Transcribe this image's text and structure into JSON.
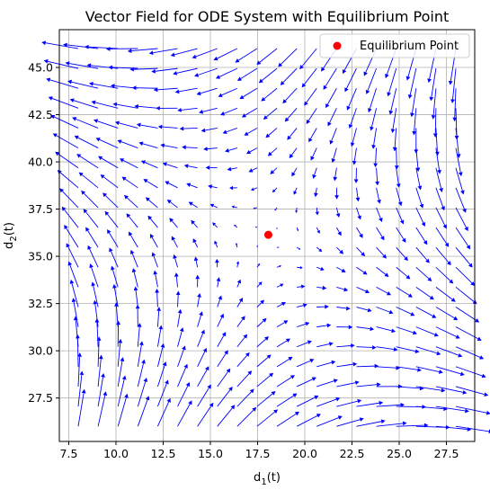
{
  "chart_data": {
    "type": "quiver",
    "title": "Vector Field for ODE System with Equilibrium Point",
    "xlabel": {
      "base": "d",
      "sub": "1",
      "suffix": "(t)"
    },
    "ylabel": {
      "base": "d",
      "sub": "2",
      "suffix": "(t)"
    },
    "xlim": [
      7.0,
      29.0
    ],
    "ylim": [
      25.2,
      47.0
    ],
    "xticks": [
      "7.5",
      "10.0",
      "12.5",
      "15.0",
      "17.5",
      "20.0",
      "22.5",
      "25.0",
      "27.5"
    ],
    "xtick_values": [
      7.5,
      10.0,
      12.5,
      15.0,
      17.5,
      20.0,
      22.5,
      25.0,
      27.5
    ],
    "yticks": [
      "27.5",
      "30.0",
      "32.5",
      "35.0",
      "37.5",
      "40.0",
      "42.5",
      "45.0"
    ],
    "ytick_values": [
      27.5,
      30.0,
      32.5,
      35.0,
      37.5,
      40.0,
      42.5,
      45.0
    ],
    "grid": true,
    "legend": {
      "placement": "top-right",
      "entries": [
        "Equilibrium Point"
      ]
    },
    "equilibrium": {
      "x": 18.07,
      "y": 36.14
    },
    "field": {
      "x_range": [
        8.0,
        28.0
      ],
      "y_range": [
        26.0,
        46.0
      ],
      "n": 20,
      "matrix": [
        [
          0.375,
          -0.52
        ],
        [
          -0.52,
          -0.375
        ]
      ]
    },
    "colors": {
      "arrows": "#0000ff",
      "equilibrium": "#ff0000",
      "grid": "#b0b0b0"
    }
  }
}
